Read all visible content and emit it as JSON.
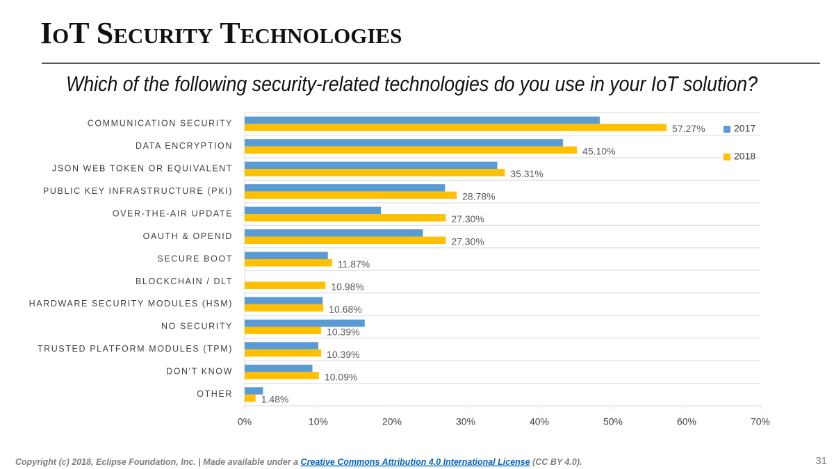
{
  "slide_title": "IoT Security Technologies",
  "chart_data": {
    "type": "bar",
    "orientation": "horizontal",
    "title": "Which of the following security-related technologies do you use in your IoT solution?",
    "categories": [
      "COMMUNICATION SECURITY",
      "DATA ENCRYPTION",
      "JSON WEB TOKEN OR EQUIVALENT",
      "PUBLIC KEY INFRASTRUCTURE (PKI)",
      "OVER-THE-AIR UPDATE",
      "OAUTH & OPENID",
      "SECURE BOOT",
      "BLOCKCHAIN / DLT",
      "HARDWARE SECURITY MODULES (HSM)",
      "NO SECURITY",
      "TRUSTED PLATFORM MODULES (TPM)",
      "DON'T KNOW",
      "OTHER"
    ],
    "series": [
      {
        "name": "2017",
        "color": "#5b9bd5",
        "values": [
          48.2,
          43.2,
          34.3,
          27.2,
          18.5,
          24.2,
          11.3,
          null,
          10.6,
          16.3,
          10.0,
          9.2,
          2.5
        ]
      },
      {
        "name": "2018",
        "color": "#ffc000",
        "values": [
          57.27,
          45.1,
          35.31,
          28.78,
          27.3,
          27.3,
          11.87,
          10.98,
          10.68,
          10.39,
          10.39,
          10.09,
          1.48
        ],
        "value_labels": [
          "57.27%",
          "45.10%",
          "35.31%",
          "28.78%",
          "27.30%",
          "27.30%",
          "11.87%",
          "10.98%",
          "10.68%",
          "10.39%",
          "10.39%",
          "10.09%",
          "1.48%"
        ]
      }
    ],
    "xlim": [
      0,
      70
    ],
    "xticks": [
      {
        "value": 0,
        "label": "0%"
      },
      {
        "value": 10,
        "label": "10%"
      },
      {
        "value": 20,
        "label": "20%"
      },
      {
        "value": 30,
        "label": "30%"
      },
      {
        "value": 40,
        "label": "40%"
      },
      {
        "value": 50,
        "label": "50%"
      },
      {
        "value": 60,
        "label": "60%"
      },
      {
        "value": 70,
        "label": "70%"
      }
    ],
    "legend": "right"
  },
  "footer": {
    "text_before": "Copyright (c) 2018, Eclipse Foundation, Inc. | Made available under a ",
    "link": "Creative Commons Attribution 4.0 International License",
    "text_after": " (CC BY 4.0)."
  },
  "page_number": 31
}
